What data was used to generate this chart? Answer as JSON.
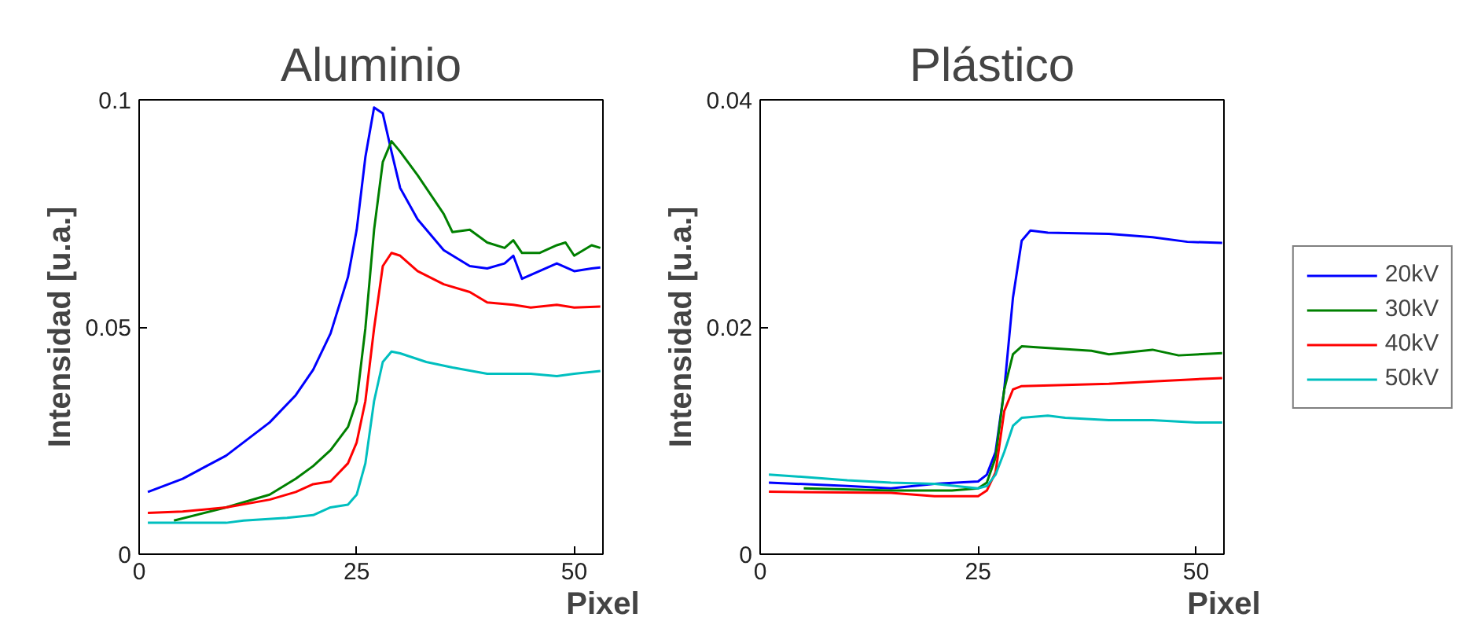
{
  "chart_data": [
    {
      "type": "line",
      "title": "Aluminio",
      "xlabel": "Pixel",
      "ylabel": "Intensidad [u.a.]",
      "xlim": [
        0,
        53.3
      ],
      "ylim": [
        0,
        0.1
      ],
      "xticks": [
        0,
        25,
        50
      ],
      "yticks": [
        0,
        0.05,
        0.1
      ],
      "grid": false,
      "legend": false,
      "line_style": "solid",
      "marker": "none",
      "series": [
        {
          "color": "#0000ff",
          "x": [
            1,
            5,
            10,
            15,
            18,
            20,
            22,
            24,
            25,
            26,
            27,
            28,
            29,
            30,
            32,
            35,
            38,
            40,
            42,
            43,
            44,
            46,
            48,
            50,
            52,
            53
          ],
          "values": [
            0.0137,
            0.0166,
            0.0217,
            0.029,
            0.035,
            0.0406,
            0.0486,
            0.061,
            0.0714,
            0.0874,
            0.0983,
            0.097,
            0.0886,
            0.0806,
            0.0737,
            0.0669,
            0.0634,
            0.0629,
            0.064,
            0.0657,
            0.0606,
            0.0623,
            0.064,
            0.0623,
            0.0629,
            0.0631
          ]
        },
        {
          "color": "#008000",
          "x": [
            4,
            10,
            15,
            18,
            20,
            22,
            24,
            25,
            26,
            27,
            28,
            29,
            30,
            32,
            35,
            36,
            38,
            40,
            42,
            43,
            44,
            46,
            48,
            49,
            50,
            52,
            53
          ],
          "values": [
            0.0074,
            0.0103,
            0.0131,
            0.0166,
            0.0194,
            0.0229,
            0.028,
            0.0337,
            0.0497,
            0.0714,
            0.0863,
            0.0909,
            0.0886,
            0.0834,
            0.0749,
            0.0709,
            0.0714,
            0.0686,
            0.0674,
            0.0691,
            0.0663,
            0.0663,
            0.068,
            0.0686,
            0.0657,
            0.068,
            0.0674
          ]
        },
        {
          "color": "#ff0000",
          "x": [
            1,
            5,
            10,
            15,
            18,
            20,
            22,
            24,
            25,
            26,
            27,
            28,
            29,
            30,
            32,
            35,
            38,
            40,
            43,
            45,
            48,
            50,
            53
          ],
          "values": [
            0.0091,
            0.0094,
            0.0103,
            0.012,
            0.0137,
            0.0154,
            0.016,
            0.02,
            0.0246,
            0.0337,
            0.0497,
            0.0634,
            0.0663,
            0.0657,
            0.0623,
            0.0594,
            0.0577,
            0.0554,
            0.0549,
            0.0543,
            0.0549,
            0.0543,
            0.0545
          ]
        },
        {
          "color": "#00bfbf",
          "x": [
            1,
            10,
            12,
            17,
            20,
            22,
            24,
            25,
            26,
            27,
            28,
            29,
            30,
            33,
            36,
            40,
            45,
            48,
            50,
            53
          ],
          "values": [
            0.0069,
            0.0069,
            0.0074,
            0.008,
            0.0086,
            0.0103,
            0.0109,
            0.0131,
            0.02,
            0.0337,
            0.0423,
            0.0446,
            0.0442,
            0.0423,
            0.0411,
            0.0397,
            0.0397,
            0.0392,
            0.0397,
            0.0403
          ]
        }
      ]
    },
    {
      "type": "line",
      "title": "Plástico",
      "xlabel": "Pixel",
      "ylabel": "Intensidad [u.a.]",
      "xlim": [
        0,
        53.2
      ],
      "ylim": [
        0,
        0.04
      ],
      "xticks": [
        0,
        25,
        50
      ],
      "yticks": [
        0,
        0.02,
        0.04
      ],
      "grid": false,
      "legend": "right",
      "line_style": "solid",
      "marker": "none",
      "series": [
        {
          "name": "20kV",
          "color": "#0000ff",
          "x": [
            1,
            10,
            15,
            20,
            25,
            26,
            27,
            28,
            29,
            30,
            31,
            33,
            40,
            45,
            49,
            53
          ],
          "values": [
            0.0063,
            0.006,
            0.0058,
            0.0062,
            0.0064,
            0.007,
            0.009,
            0.0145,
            0.0226,
            0.0276,
            0.0285,
            0.0283,
            0.0282,
            0.0279,
            0.0275,
            0.0274
          ]
        },
        {
          "name": "30kV",
          "color": "#008000",
          "x": [
            5,
            15,
            22,
            25,
            26,
            27,
            28,
            29,
            30,
            32,
            38,
            40,
            45,
            48,
            53
          ],
          "values": [
            0.0058,
            0.0056,
            0.0056,
            0.0058,
            0.0063,
            0.0085,
            0.0145,
            0.0176,
            0.0183,
            0.0182,
            0.0179,
            0.0176,
            0.018,
            0.0175,
            0.0177
          ]
        },
        {
          "name": "40kV",
          "color": "#ff0000",
          "x": [
            1,
            15,
            20,
            25,
            26,
            27,
            28,
            29,
            30,
            35,
            40,
            45,
            50,
            53
          ],
          "values": [
            0.0055,
            0.0054,
            0.0051,
            0.0051,
            0.0056,
            0.0072,
            0.0126,
            0.0145,
            0.0148,
            0.0149,
            0.015,
            0.0152,
            0.0154,
            0.0155
          ]
        },
        {
          "name": "50kV",
          "color": "#00bfbf",
          "x": [
            1,
            5,
            10,
            15,
            20,
            25,
            26,
            27,
            28,
            29,
            30,
            33,
            35,
            40,
            45,
            50,
            53
          ],
          "values": [
            0.007,
            0.0068,
            0.0065,
            0.0063,
            0.0062,
            0.0058,
            0.006,
            0.007,
            0.009,
            0.0113,
            0.012,
            0.0122,
            0.012,
            0.0118,
            0.0118,
            0.0116,
            0.0116
          ]
        }
      ]
    }
  ]
}
